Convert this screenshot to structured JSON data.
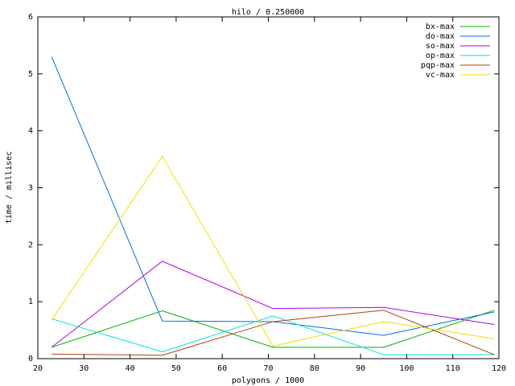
{
  "chart_data": {
    "type": "line",
    "title": "hilo / 0.250000",
    "x_label": "polygons / 1000",
    "y_label": "time / millisec",
    "x": [
      23,
      47,
      71,
      95,
      119
    ],
    "xlim": [
      20,
      120
    ],
    "xticks": [
      20,
      30,
      40,
      50,
      60,
      70,
      80,
      90,
      100,
      110,
      120
    ],
    "ylim": [
      0,
      6
    ],
    "yticks": [
      0,
      1,
      2,
      3,
      4,
      5,
      6
    ],
    "legend": "top-right",
    "series": [
      {
        "name": "bx-max",
        "color": "#00b000",
        "values": [
          0.2,
          0.84,
          0.2,
          0.2,
          0.85
        ]
      },
      {
        "name": "do-max",
        "color": "#0070e0",
        "values": [
          5.3,
          0.66,
          0.65,
          0.41,
          0.82
        ]
      },
      {
        "name": "so-max",
        "color": "#b000e0",
        "values": [
          0.2,
          1.71,
          0.88,
          0.9,
          0.6
        ]
      },
      {
        "name": "op-max",
        "color": "#00e0e0",
        "values": [
          0.7,
          0.12,
          0.75,
          0.07,
          0.07
        ]
      },
      {
        "name": "pqp-max",
        "color": "#b04010",
        "values": [
          0.08,
          0.06,
          0.65,
          0.85,
          0.07
        ]
      },
      {
        "name": "vc-max",
        "color": "#f0e000",
        "values": [
          0.68,
          3.55,
          0.22,
          0.65,
          0.35
        ]
      }
    ]
  }
}
